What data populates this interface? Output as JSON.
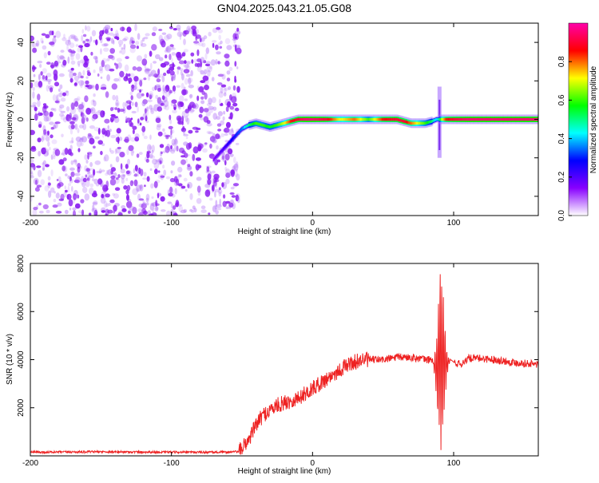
{
  "title": "GN04.2025.043.21.05.G08",
  "colors": {
    "snr_line": "#ee2222",
    "colormap": [
      "#ffffff",
      "#8800ff",
      "#0000ff",
      "#00ffff",
      "#00ff00",
      "#ffff00",
      "#ff0000",
      "#ff00aa"
    ]
  },
  "chart_data": [
    {
      "type": "heatmap",
      "xlabel": "Height of straight line (km)",
      "ylabel": "Frequency (Hz)",
      "xlim": [
        -200,
        160
      ],
      "ylim": [
        -50,
        50
      ],
      "x_ticks": [
        -200,
        -100,
        0,
        100
      ],
      "y_ticks": [
        -40,
        -20,
        0,
        20,
        40
      ],
      "colorbar": {
        "label": "Normalized spectral amplitude",
        "range": [
          0,
          1
        ],
        "ticks": [
          "0.0",
          "0.2",
          "0.4",
          "0.6",
          "0.8"
        ]
      },
      "noise_region": {
        "x_range": [
          -200,
          -52
        ],
        "freq_range": [
          -50,
          48
        ]
      },
      "ridge": {
        "x": [
          -70,
          -65,
          -60,
          -55,
          -50,
          -45,
          -40,
          -35,
          -30,
          -25,
          -20,
          -15,
          -10,
          -5,
          0,
          10,
          20,
          30,
          40,
          50,
          60,
          65,
          70,
          75,
          80,
          85,
          88,
          90,
          92,
          95,
          100,
          110,
          120,
          130,
          140,
          150,
          160
        ],
        "freq": [
          -21,
          -17,
          -13,
          -9,
          -5,
          -3,
          -2,
          -3,
          -4,
          -3,
          -2,
          -1,
          0,
          0,
          0,
          0,
          0,
          0,
          0,
          0,
          0,
          -1,
          -2,
          -2,
          -2,
          -1,
          0,
          0,
          0,
          0,
          0,
          0,
          0,
          0,
          0,
          0,
          0
        ],
        "amplitude": [
          0.15,
          0.2,
          0.25,
          0.3,
          0.35,
          0.5,
          0.6,
          0.6,
          0.55,
          0.6,
          0.7,
          0.85,
          0.9,
          0.95,
          0.95,
          0.9,
          0.7,
          0.8,
          0.6,
          0.85,
          0.9,
          0.9,
          0.8,
          0.7,
          0.6,
          0.5,
          0.4,
          0.5,
          0.7,
          0.85,
          0.9,
          0.95,
          0.95,
          0.95,
          0.95,
          0.95,
          0.95
        ]
      },
      "spike": {
        "x": 90,
        "freq_range": [
          -20,
          17
        ]
      }
    },
    {
      "type": "line",
      "xlabel": "Height of straight line (km)",
      "ylabel": "SNR (10 * v/v)",
      "xlim": [
        -200,
        160
      ],
      "ylim": [
        0,
        8000
      ],
      "x_ticks": [
        -200,
        -100,
        0,
        100
      ],
      "y_ticks": [
        2000,
        4000,
        6000,
        8000
      ],
      "series": [
        {
          "x": [
            -200,
            -150,
            -100,
            -60,
            -52,
            -45,
            -40,
            -35,
            -30,
            -25,
            -20,
            -15,
            -10,
            -5,
            0,
            5,
            10,
            15,
            20,
            25,
            30,
            35,
            40,
            50,
            60,
            70,
            80,
            85,
            88,
            90,
            92,
            95,
            98,
            100,
            105,
            110,
            120,
            130,
            140,
            150,
            160
          ],
          "values": [
            150,
            170,
            150,
            150,
            180,
            700,
            1300,
            1700,
            1900,
            2100,
            2200,
            2300,
            2400,
            2600,
            2800,
            3000,
            3200,
            3400,
            3600,
            3800,
            3900,
            4000,
            4000,
            4000,
            4100,
            4100,
            4000,
            4000,
            3500,
            4200,
            4200,
            3800,
            4000,
            3900,
            3800,
            4050,
            4050,
            4000,
            3900,
            3850,
            3800
          ]
        }
      ],
      "burst": {
        "x_range": [
          86,
          100
        ],
        "min": 500,
        "max": 8000
      }
    }
  ]
}
